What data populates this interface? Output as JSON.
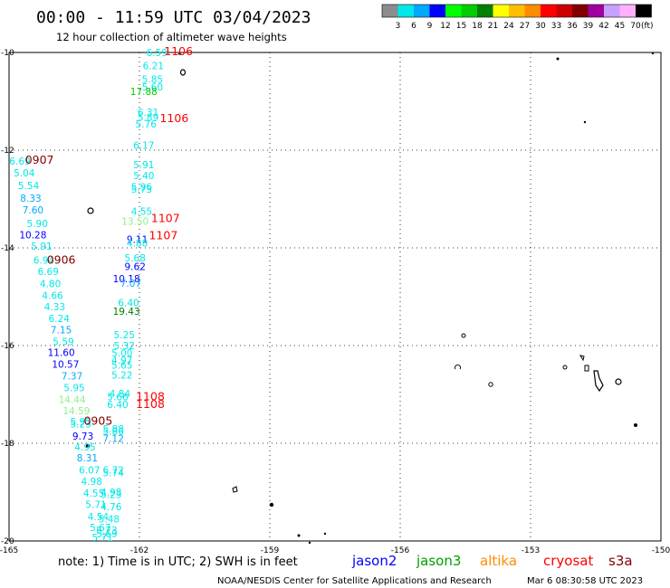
{
  "title": "00:00 - 11:59 UTC 03/04/2023",
  "subtitle": "12 hour collection of altimeter wave heights",
  "legend": {
    "unit": "(ft)",
    "labels": [
      "3",
      "6",
      "9",
      "12",
      "15",
      "18",
      "21",
      "24",
      "27",
      "30",
      "33",
      "36",
      "39",
      "42",
      "45",
      "70"
    ],
    "colors": [
      "#8c8c8c",
      "#00e8e8",
      "#00a8ff",
      "#0000ff",
      "#00ff00",
      "#00cc00",
      "#008000",
      "#ffff00",
      "#ffbf00",
      "#ff8c00",
      "#ff0000",
      "#cc0000",
      "#800000",
      "#a000a0",
      "#c8a0ff",
      "#ffb0ff",
      "#000000"
    ]
  },
  "axes": {
    "lon_ticks": [
      "-165",
      "-162",
      "-159",
      "-156",
      "-153",
      "-150"
    ],
    "lat_ticks": [
      "-10",
      "-12",
      "-14",
      "-16",
      "-18",
      "-20"
    ]
  },
  "observations": [
    {
      "v": "6.59",
      "lon": -161.6,
      "lat": -10.0,
      "c": "#00e8e8"
    },
    {
      "v": "6.21",
      "lon": -161.68,
      "lat": -10.27,
      "c": "#00e8e8"
    },
    {
      "v": "5.85",
      "lon": -161.7,
      "lat": -10.55,
      "c": "#00e8e8"
    },
    {
      "v": "5.60",
      "lon": -161.7,
      "lat": -10.7,
      "c": "#00e8e8"
    },
    {
      "v": "17.88",
      "lon": -161.9,
      "lat": -10.8,
      "c": "#00cc00"
    },
    {
      "v": "6.31",
      "lon": -161.8,
      "lat": -11.22,
      "c": "#00e8e8"
    },
    {
      "v": "5.89",
      "lon": -161.8,
      "lat": -11.32,
      "c": "#00e8e8"
    },
    {
      "v": "5.76",
      "lon": -161.85,
      "lat": -11.46,
      "c": "#00e8e8"
    },
    {
      "v": "6.17",
      "lon": -161.9,
      "lat": -11.9,
      "c": "#00e8e8"
    },
    {
      "v": "5.91",
      "lon": -161.9,
      "lat": -12.3,
      "c": "#00e8e8"
    },
    {
      "v": "5.40",
      "lon": -161.9,
      "lat": -12.52,
      "c": "#00e8e8"
    },
    {
      "v": "5.96",
      "lon": -161.95,
      "lat": -12.75,
      "c": "#00e8e8"
    },
    {
      "v": "5.73",
      "lon": -161.95,
      "lat": -12.8,
      "c": "#00e8e8"
    },
    {
      "v": "4.55",
      "lon": -161.95,
      "lat": -13.25,
      "c": "#00e8e8"
    },
    {
      "v": "13.50",
      "lon": -162.1,
      "lat": -13.45,
      "c": "#90ee90"
    },
    {
      "v": "9.11",
      "lon": -162.05,
      "lat": -13.82,
      "c": "#0000ff"
    },
    {
      "v": "4.88",
      "lon": -162.05,
      "lat": -13.9,
      "c": "#00e8e8"
    },
    {
      "v": "5.68",
      "lon": -162.1,
      "lat": -14.2,
      "c": "#00e8e8"
    },
    {
      "v": "9.62",
      "lon": -162.1,
      "lat": -14.38,
      "c": "#0000ff"
    },
    {
      "v": "10.18",
      "lon": -162.3,
      "lat": -14.63,
      "c": "#0000ff"
    },
    {
      "v": "7.07",
      "lon": -162.2,
      "lat": -14.72,
      "c": "#00a8ff"
    },
    {
      "v": "6.40",
      "lon": -162.25,
      "lat": -15.12,
      "c": "#00e8e8"
    },
    {
      "v": "19.43",
      "lon": -162.3,
      "lat": -15.3,
      "c": "#008000"
    },
    {
      "v": "5.25",
      "lon": -162.35,
      "lat": -15.78,
      "c": "#00e8e8"
    },
    {
      "v": "5.32",
      "lon": -162.35,
      "lat": -16.0,
      "c": "#00e8e8"
    },
    {
      "v": "5.00",
      "lon": -162.4,
      "lat": -16.15,
      "c": "#00e8e8"
    },
    {
      "v": "4.97",
      "lon": -162.4,
      "lat": -16.3,
      "c": "#00e8e8"
    },
    {
      "v": "5.65",
      "lon": -162.4,
      "lat": -16.4,
      "c": "#00e8e8"
    },
    {
      "v": "5.22",
      "lon": -162.4,
      "lat": -16.6,
      "c": "#00e8e8"
    },
    {
      "v": "4.84",
      "lon": -162.45,
      "lat": -16.98,
      "c": "#00e8e8"
    },
    {
      "v": "5.66",
      "lon": -162.5,
      "lat": -17.05,
      "c": "#00e8e8"
    },
    {
      "v": "6.40",
      "lon": -162.5,
      "lat": -17.2,
      "c": "#00e8e8"
    },
    {
      "v": "5.88",
      "lon": -162.6,
      "lat": -17.7,
      "c": "#00e8e8"
    },
    {
      "v": "5.86",
      "lon": -162.6,
      "lat": -17.75,
      "c": "#00e8e8"
    },
    {
      "v": "7.12",
      "lon": -162.6,
      "lat": -17.9,
      "c": "#00a8ff"
    },
    {
      "v": "6.72",
      "lon": -162.6,
      "lat": -18.55,
      "c": "#00e8e8"
    },
    {
      "v": "5.74",
      "lon": -162.6,
      "lat": -18.6,
      "c": "#00e8e8"
    },
    {
      "v": "4.98",
      "lon": -162.65,
      "lat": -19.0,
      "c": "#00e8e8"
    },
    {
      "v": "5.23",
      "lon": -162.65,
      "lat": -19.05,
      "c": "#00e8e8"
    },
    {
      "v": "4.76",
      "lon": -162.65,
      "lat": -19.3,
      "c": "#00e8e8"
    },
    {
      "v": "5.48",
      "lon": -162.7,
      "lat": -19.55,
      "c": "#00e8e8"
    },
    {
      "v": "5.73",
      "lon": -162.75,
      "lat": -19.78,
      "c": "#00e8e8"
    },
    {
      "v": "5.69",
      "lon": -162.75,
      "lat": -19.85,
      "c": "#00e8e8"
    },
    {
      "v": "6.69",
      "lon": -164.75,
      "lat": -12.22,
      "c": "#00e8e8"
    },
    {
      "v": "5.04",
      "lon": -164.65,
      "lat": -12.46,
      "c": "#00e8e8"
    },
    {
      "v": "5.54",
      "lon": -164.55,
      "lat": -12.72,
      "c": "#00e8e8"
    },
    {
      "v": "8.33",
      "lon": -164.5,
      "lat": -12.98,
      "c": "#00a8ff"
    },
    {
      "v": "7.60",
      "lon": -164.45,
      "lat": -13.22,
      "c": "#00a8ff"
    },
    {
      "v": "5.90",
      "lon": -164.35,
      "lat": -13.5,
      "c": "#00e8e8"
    },
    {
      "v": "10.28",
      "lon": -164.45,
      "lat": -13.73,
      "c": "#0000ff"
    },
    {
      "v": "5.91",
      "lon": -164.25,
      "lat": -13.96,
      "c": "#00e8e8"
    },
    {
      "v": "6.94",
      "lon": -164.2,
      "lat": -14.25,
      "c": "#00e8e8"
    },
    {
      "v": "6.69",
      "lon": -164.1,
      "lat": -14.48,
      "c": "#00e8e8"
    },
    {
      "v": "4.80",
      "lon": -164.05,
      "lat": -14.73,
      "c": "#00e8e8"
    },
    {
      "v": "4.66",
      "lon": -164.0,
      "lat": -14.97,
      "c": "#00e8e8"
    },
    {
      "v": "4.33",
      "lon": -163.95,
      "lat": -15.2,
      "c": "#00e8e8"
    },
    {
      "v": "6.24",
      "lon": -163.85,
      "lat": -15.44,
      "c": "#00e8e8"
    },
    {
      "v": "7.15",
      "lon": -163.8,
      "lat": -15.68,
      "c": "#00a8ff"
    },
    {
      "v": "5.59",
      "lon": -163.75,
      "lat": -15.92,
      "c": "#00e8e8"
    },
    {
      "v": "11.60",
      "lon": -163.8,
      "lat": -16.14,
      "c": "#0000ff"
    },
    {
      "v": "10.57",
      "lon": -163.7,
      "lat": -16.38,
      "c": "#0000ff"
    },
    {
      "v": "7.37",
      "lon": -163.55,
      "lat": -16.62,
      "c": "#00a8ff"
    },
    {
      "v": "5.95",
      "lon": -163.5,
      "lat": -16.86,
      "c": "#00e8e8"
    },
    {
      "v": "14.44",
      "lon": -163.55,
      "lat": -17.1,
      "c": "#90ee90"
    },
    {
      "v": "14.59",
      "lon": -163.45,
      "lat": -17.33,
      "c": "#90ee90"
    },
    {
      "v": "5.95",
      "lon": -163.35,
      "lat": -17.56,
      "c": "#00e8e8"
    },
    {
      "v": "5.23",
      "lon": -163.35,
      "lat": -17.6,
      "c": "#00e8e8"
    },
    {
      "v": "9.73",
      "lon": -163.3,
      "lat": -17.85,
      "c": "#0000ff"
    },
    {
      "v": "4.95",
      "lon": -163.25,
      "lat": -18.07,
      "c": "#00e8e8"
    },
    {
      "v": "8.31",
      "lon": -163.2,
      "lat": -18.3,
      "c": "#00a8ff"
    },
    {
      "v": "6.07",
      "lon": -163.15,
      "lat": -18.55,
      "c": "#00e8e8"
    },
    {
      "v": "4.98",
      "lon": -163.1,
      "lat": -18.78,
      "c": "#00e8e8"
    },
    {
      "v": "4.55",
      "lon": -163.05,
      "lat": -19.02,
      "c": "#00e8e8"
    },
    {
      "v": "5.71",
      "lon": -163.0,
      "lat": -19.25,
      "c": "#00e8e8"
    },
    {
      "v": "4.54",
      "lon": -162.95,
      "lat": -19.5,
      "c": "#00e8e8"
    },
    {
      "v": "5.67",
      "lon": -162.9,
      "lat": -19.72,
      "c": "#00e8e8"
    },
    {
      "v": "5.71",
      "lon": -162.85,
      "lat": -19.93,
      "c": "#00e8e8"
    }
  ],
  "pass_times": [
    {
      "t": "1106",
      "lon": -161.1,
      "lat": -9.98,
      "c": "#ff0000"
    },
    {
      "t": "1106",
      "lon": -161.2,
      "lat": -11.35,
      "c": "#ff0000"
    },
    {
      "t": "0907",
      "lon": -164.3,
      "lat": -12.2,
      "c": "#800000"
    },
    {
      "t": "1107",
      "lon": -161.4,
      "lat": -13.4,
      "c": "#ff0000"
    },
    {
      "t": "1107",
      "lon": -161.45,
      "lat": -13.75,
      "c": "#ff0000"
    },
    {
      "t": "0906",
      "lon": -163.8,
      "lat": -14.25,
      "c": "#800000"
    },
    {
      "t": "1108",
      "lon": -161.75,
      "lat": -17.05,
      "c": "#ff0000"
    },
    {
      "t": "1108",
      "lon": -161.75,
      "lat": -17.2,
      "c": "#ff0000"
    },
    {
      "t": "0905",
      "lon": -162.95,
      "lat": -17.55,
      "c": "#800000"
    }
  ],
  "footer": {
    "note": "note: 1) Time is in UTC; 2) SWH is in feet",
    "satellites": [
      {
        "name": "jason2",
        "color": "#0000ff"
      },
      {
        "name": "jason3",
        "color": "#00a000"
      },
      {
        "name": "altika",
        "color": "#ff8c00"
      },
      {
        "name": "cryosat",
        "color": "#ff0000"
      },
      {
        "name": "s3a",
        "color": "#800000"
      }
    ],
    "credit": "NOAA/NESDIS Center for Satellite Applications and Research",
    "timestamp": "Mar  6 08:30:58 UTC 2023"
  }
}
